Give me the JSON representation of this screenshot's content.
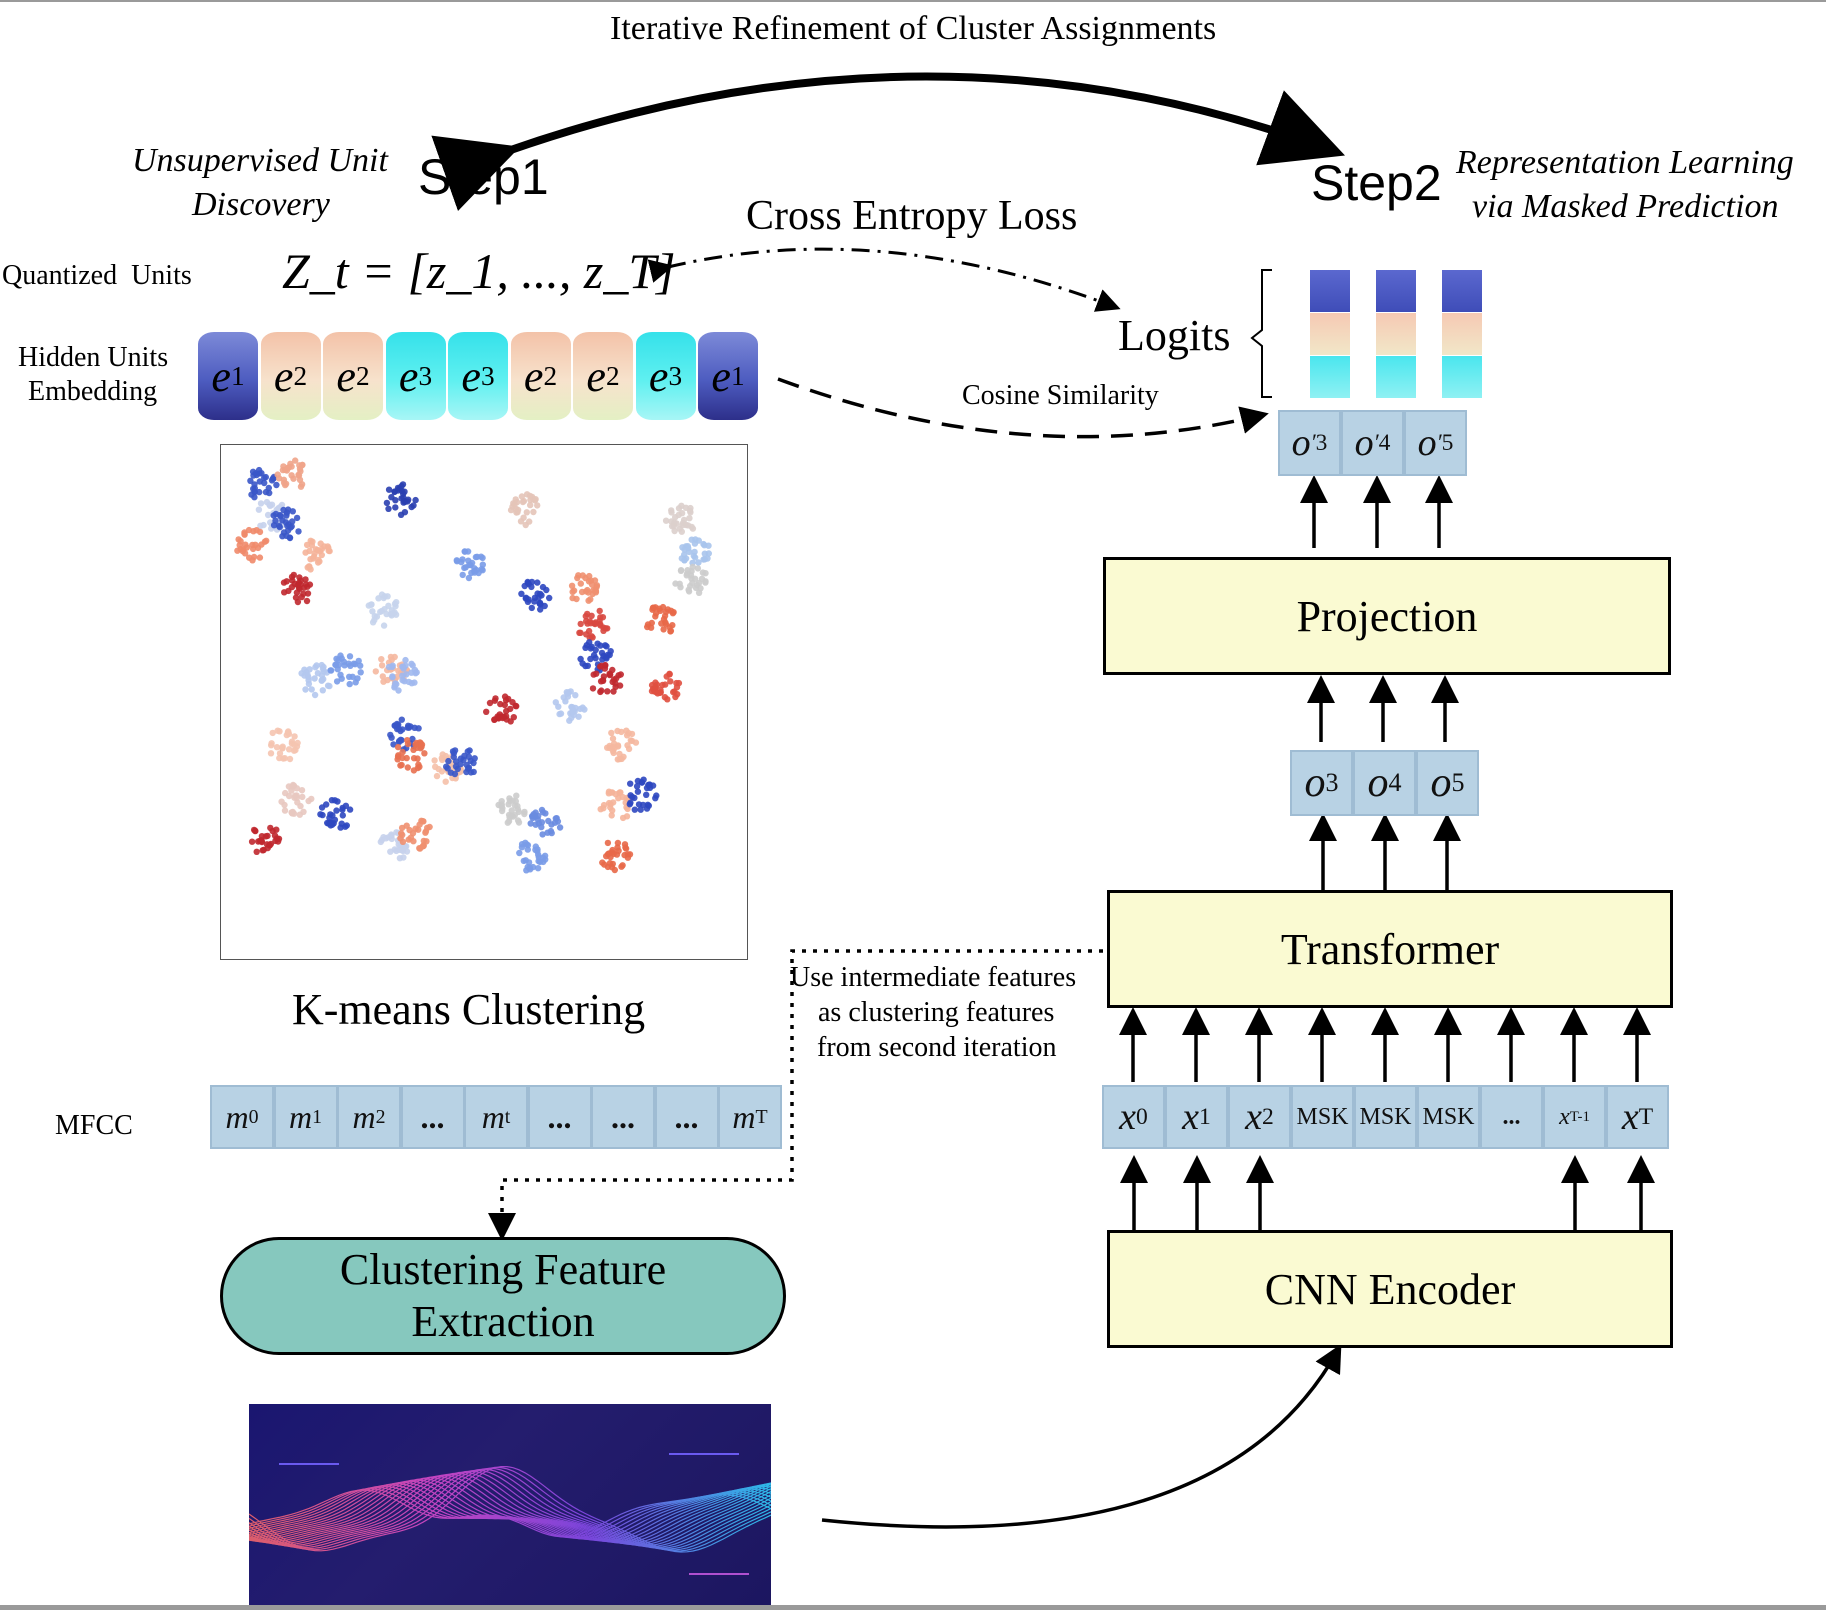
{
  "title": "Iterative Refinement of Cluster Assignments",
  "step1": {
    "label": "Step1",
    "caption_line1": "Unsupervised Unit",
    "caption_line2": "Discovery"
  },
  "step2": {
    "label": "Step2",
    "caption_line1": "Representation Learning",
    "caption_line2": "via Masked Prediction"
  },
  "cross_entropy_label": "Cross Entropy Loss",
  "quantized_units_label": "Quantized  Units",
  "quantized_formula": "Z_t = [z_1, ..., z_T]",
  "hidden_units_label_line1": "Hidden Units",
  "hidden_units_label_line2": "Embedding",
  "hidden_units": [
    "e1",
    "e2",
    "e2",
    "e3",
    "e3",
    "e2",
    "e2",
    "e3",
    "e1"
  ],
  "logits_label": "Logits",
  "cosine_label": "Cosine Similarity",
  "projected_outputs": [
    "o'3",
    "o'4",
    "o'5"
  ],
  "projection_label": "Projection",
  "transformer_outputs": [
    "o3",
    "o4",
    "o5"
  ],
  "transformer_label": "Transformer",
  "kmeans_label": "K-means Clustering",
  "intermediate_note_line1": "Use intermediate features",
  "intermediate_note_line2": "as clustering features",
  "intermediate_note_line3": "from second iteration",
  "mfcc_label": "MFCC",
  "mfcc_tokens": [
    "m0",
    "m1",
    "m2",
    "...",
    "mt",
    "...",
    "...",
    "...",
    "mT"
  ],
  "input_tokens": [
    "x0",
    "x1",
    "x2",
    "MSK",
    "MSK",
    "MSK",
    "...",
    "xT-1",
    "xT"
  ],
  "cnn_label": "CNN Encoder",
  "cfe_line1": "Clustering Feature",
  "cfe_line2": "Extraction",
  "colors": {
    "box_fill": "#fafad2",
    "cell_fill": "#b8d2e4",
    "cfe_fill": "#86c8be",
    "cluster_blue": "#3a56c8",
    "cluster_red": "#c0282f"
  }
}
